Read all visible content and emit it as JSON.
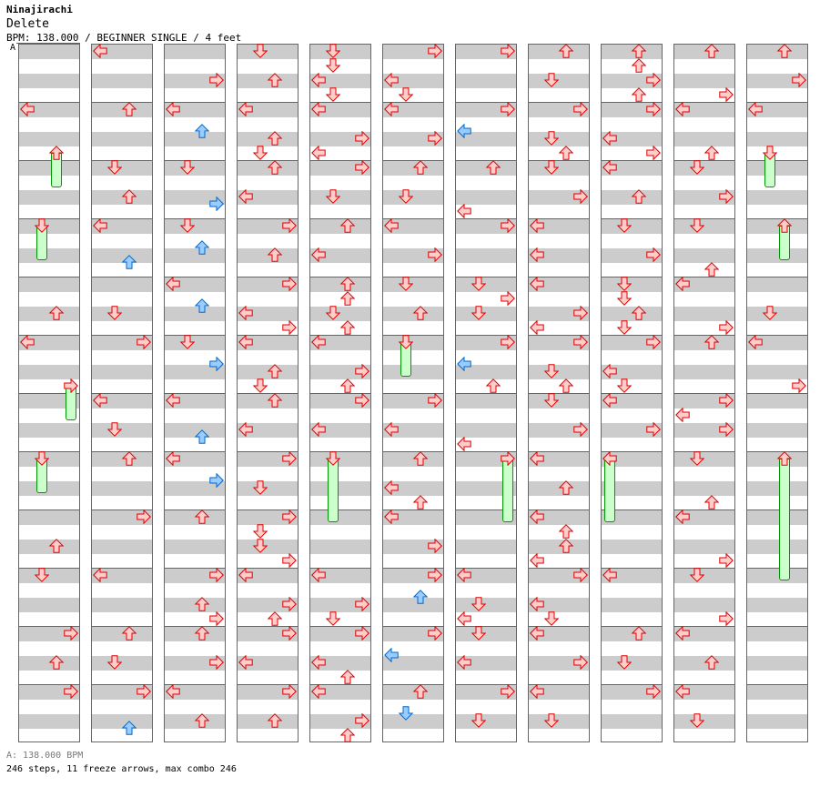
{
  "header": {
    "artist": "Ninajirachi",
    "title": "Delete",
    "info": "BPM: 138.000 / BEGINNER SINGLE / 4 feet",
    "bpm_marker": "A"
  },
  "footer": {
    "bpm_note": "A: 138.000 BPM",
    "stats": "246 steps, 11 freeze arrows, max combo 246"
  },
  "colors": {
    "note_fill": "#ffcccc",
    "note_stroke": "#dd0000",
    "offbeat_fill": "#99ccff",
    "offbeat_stroke": "#0066cc",
    "freeze_fill": "#ccffcc",
    "freeze_stroke": "#009900"
  },
  "chart": {
    "beats_per_column": 48,
    "columns": [
      {
        "notes": [
          [
            4,
            "L"
          ],
          [
            18,
            "U"
          ],
          [
            20,
            "L"
          ],
          [
            34,
            "U"
          ],
          [
            36,
            "D"
          ],
          [
            40,
            "R"
          ],
          [
            42,
            "U"
          ],
          [
            44,
            "R"
          ]
        ],
        "freezes": [
          [
            7,
            "U",
            2
          ],
          [
            12,
            "D",
            2
          ],
          [
            23,
            "R",
            2
          ],
          [
            28,
            "D",
            2
          ]
        ]
      },
      {
        "notes": [
          [
            0,
            "L"
          ],
          [
            4,
            "U"
          ],
          [
            8,
            "D"
          ],
          [
            10,
            "U"
          ],
          [
            12,
            "L"
          ],
          [
            14.5,
            "U"
          ],
          [
            18,
            "D"
          ],
          [
            20,
            "R"
          ],
          [
            24,
            "L"
          ],
          [
            26,
            "D"
          ],
          [
            28,
            "U"
          ],
          [
            32,
            "R"
          ],
          [
            36,
            "L"
          ],
          [
            40,
            "U"
          ],
          [
            42,
            "D"
          ],
          [
            44,
            "R"
          ],
          [
            46.5,
            "U"
          ]
        ],
        "freezes": []
      },
      {
        "notes": [
          [
            2,
            "R"
          ],
          [
            4,
            "L"
          ],
          [
            5.5,
            "U"
          ],
          [
            8,
            "D"
          ],
          [
            10.5,
            "R"
          ],
          [
            12,
            "D"
          ],
          [
            13.5,
            "U"
          ],
          [
            16,
            "L"
          ],
          [
            17.5,
            "U"
          ],
          [
            20,
            "D"
          ],
          [
            21.5,
            "R"
          ],
          [
            24,
            "L"
          ],
          [
            26.5,
            "U"
          ],
          [
            28,
            "L"
          ],
          [
            29.5,
            "R"
          ],
          [
            32,
            "U"
          ],
          [
            36,
            "R"
          ],
          [
            38,
            "U"
          ],
          [
            39,
            "R"
          ],
          [
            40,
            "U"
          ],
          [
            42,
            "R"
          ],
          [
            44,
            "L"
          ],
          [
            46,
            "U"
          ]
        ],
        "freezes": []
      },
      {
        "notes": [
          [
            0,
            "D"
          ],
          [
            2,
            "U"
          ],
          [
            4,
            "L"
          ],
          [
            6,
            "U"
          ],
          [
            7,
            "D"
          ],
          [
            8,
            "U"
          ],
          [
            10,
            "L"
          ],
          [
            12,
            "R"
          ],
          [
            14,
            "U"
          ],
          [
            16,
            "R"
          ],
          [
            18,
            "L"
          ],
          [
            19,
            "R"
          ],
          [
            20,
            "L"
          ],
          [
            22,
            "U"
          ],
          [
            23,
            "D"
          ],
          [
            24,
            "U"
          ],
          [
            26,
            "L"
          ],
          [
            28,
            "R"
          ],
          [
            30,
            "D"
          ],
          [
            32,
            "R"
          ],
          [
            33,
            "D"
          ],
          [
            34,
            "D"
          ],
          [
            35,
            "R"
          ],
          [
            36,
            "L"
          ],
          [
            38,
            "R"
          ],
          [
            39,
            "U"
          ],
          [
            40,
            "R"
          ],
          [
            42,
            "L"
          ],
          [
            44,
            "R"
          ],
          [
            46,
            "U"
          ]
        ],
        "freezes": []
      },
      {
        "notes": [
          [
            0,
            "D"
          ],
          [
            1,
            "D"
          ],
          [
            2,
            "L"
          ],
          [
            3,
            "D"
          ],
          [
            4,
            "L"
          ],
          [
            6,
            "R"
          ],
          [
            7,
            "L"
          ],
          [
            8,
            "R"
          ],
          [
            10,
            "D"
          ],
          [
            12,
            "U"
          ],
          [
            14,
            "L"
          ],
          [
            16,
            "U"
          ],
          [
            17,
            "U"
          ],
          [
            18,
            "D"
          ],
          [
            19,
            "U"
          ],
          [
            20,
            "L"
          ],
          [
            22,
            "R"
          ],
          [
            23,
            "U"
          ],
          [
            24,
            "R"
          ],
          [
            26,
            "L"
          ],
          [
            36,
            "L"
          ],
          [
            38,
            "R"
          ],
          [
            39,
            "D"
          ],
          [
            40,
            "R"
          ],
          [
            42,
            "L"
          ],
          [
            43,
            "U"
          ],
          [
            44,
            "L"
          ],
          [
            46,
            "R"
          ],
          [
            47,
            "U"
          ]
        ],
        "freezes": [
          [
            28,
            "D",
            4
          ]
        ]
      },
      {
        "notes": [
          [
            0,
            "R"
          ],
          [
            2,
            "L"
          ],
          [
            3,
            "D"
          ],
          [
            4,
            "L"
          ],
          [
            6,
            "R"
          ],
          [
            8,
            "U"
          ],
          [
            10,
            "D"
          ],
          [
            12,
            "L"
          ],
          [
            14,
            "R"
          ],
          [
            16,
            "D"
          ],
          [
            18,
            "U"
          ],
          [
            24,
            "R"
          ],
          [
            26,
            "L"
          ],
          [
            28,
            "U"
          ],
          [
            30,
            "L"
          ],
          [
            31,
            "U"
          ],
          [
            32,
            "L"
          ],
          [
            34,
            "R"
          ],
          [
            36,
            "R"
          ],
          [
            37.5,
            "U"
          ],
          [
            40,
            "R"
          ],
          [
            41.5,
            "L"
          ],
          [
            44,
            "U"
          ],
          [
            45.5,
            "D"
          ]
        ],
        "freezes": [
          [
            20,
            "D",
            2
          ]
        ]
      },
      {
        "notes": [
          [
            0,
            "R"
          ],
          [
            4,
            "R"
          ],
          [
            5.5,
            "L"
          ],
          [
            8,
            "U"
          ],
          [
            11,
            "L"
          ],
          [
            12,
            "R"
          ],
          [
            16,
            "D"
          ],
          [
            17,
            "R"
          ],
          [
            18,
            "D"
          ],
          [
            20,
            "R"
          ],
          [
            21.5,
            "L"
          ],
          [
            23,
            "U"
          ],
          [
            27,
            "L"
          ],
          [
            36,
            "L"
          ],
          [
            38,
            "D"
          ],
          [
            39,
            "L"
          ],
          [
            40,
            "D"
          ],
          [
            42,
            "L"
          ],
          [
            44,
            "R"
          ],
          [
            46,
            "D"
          ]
        ],
        "freezes": [
          [
            28,
            "R",
            4
          ]
        ]
      },
      {
        "notes": [
          [
            0,
            "U"
          ],
          [
            2,
            "D"
          ],
          [
            4,
            "R"
          ],
          [
            6,
            "D"
          ],
          [
            7,
            "U"
          ],
          [
            8,
            "D"
          ],
          [
            10,
            "R"
          ],
          [
            12,
            "L"
          ],
          [
            14,
            "L"
          ],
          [
            16,
            "L"
          ],
          [
            18,
            "R"
          ],
          [
            19,
            "L"
          ],
          [
            20,
            "R"
          ],
          [
            22,
            "D"
          ],
          [
            23,
            "U"
          ],
          [
            24,
            "D"
          ],
          [
            26,
            "R"
          ],
          [
            28,
            "L"
          ],
          [
            30,
            "U"
          ],
          [
            32,
            "L"
          ],
          [
            33,
            "U"
          ],
          [
            34,
            "U"
          ],
          [
            35,
            "L"
          ],
          [
            36,
            "R"
          ],
          [
            38,
            "L"
          ],
          [
            39,
            "D"
          ],
          [
            40,
            "L"
          ],
          [
            42,
            "R"
          ],
          [
            44,
            "L"
          ],
          [
            46,
            "D"
          ]
        ],
        "freezes": []
      },
      {
        "notes": [
          [
            0,
            "U"
          ],
          [
            1,
            "U"
          ],
          [
            2,
            "R"
          ],
          [
            3,
            "U"
          ],
          [
            4,
            "R"
          ],
          [
            6,
            "L"
          ],
          [
            7,
            "R"
          ],
          [
            8,
            "L"
          ],
          [
            10,
            "U"
          ],
          [
            12,
            "D"
          ],
          [
            14,
            "R"
          ],
          [
            16,
            "D"
          ],
          [
            17,
            "D"
          ],
          [
            18,
            "U"
          ],
          [
            19,
            "D"
          ],
          [
            20,
            "R"
          ],
          [
            22,
            "L"
          ],
          [
            23,
            "D"
          ],
          [
            24,
            "L"
          ],
          [
            26,
            "R"
          ],
          [
            36,
            "L"
          ],
          [
            40,
            "U"
          ],
          [
            42,
            "D"
          ],
          [
            44,
            "R"
          ]
        ],
        "freezes": [
          [
            28,
            "L",
            4
          ]
        ]
      },
      {
        "notes": [
          [
            0,
            "U"
          ],
          [
            3,
            "R"
          ],
          [
            4,
            "L"
          ],
          [
            7,
            "U"
          ],
          [
            8,
            "D"
          ],
          [
            10,
            "R"
          ],
          [
            12,
            "D"
          ],
          [
            15,
            "U"
          ],
          [
            16,
            "L"
          ],
          [
            19,
            "R"
          ],
          [
            20,
            "U"
          ],
          [
            24,
            "R"
          ],
          [
            25,
            "L"
          ],
          [
            26,
            "R"
          ],
          [
            28,
            "D"
          ],
          [
            31,
            "U"
          ],
          [
            32,
            "L"
          ],
          [
            35,
            "R"
          ],
          [
            36,
            "D"
          ],
          [
            39,
            "R"
          ],
          [
            40,
            "L"
          ],
          [
            42,
            "U"
          ],
          [
            44,
            "L"
          ],
          [
            46,
            "D"
          ]
        ],
        "freezes": []
      },
      {
        "notes": [
          [
            0,
            "U"
          ],
          [
            2,
            "R"
          ],
          [
            4,
            "L"
          ],
          [
            18,
            "D"
          ],
          [
            20,
            "L"
          ],
          [
            23,
            "R"
          ]
        ],
        "freezes": [
          [
            7,
            "D",
            2
          ],
          [
            12,
            "U",
            2
          ],
          [
            28,
            "U",
            8
          ]
        ]
      }
    ]
  }
}
